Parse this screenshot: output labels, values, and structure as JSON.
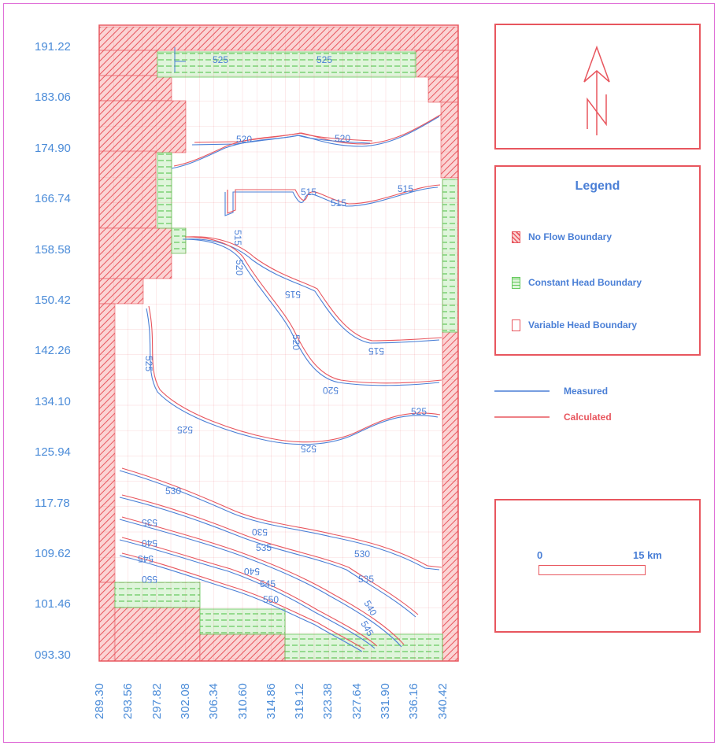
{
  "axis": {
    "y_ticks": [
      "191.22",
      "183.06",
      "174.90",
      "166.74",
      "158.58",
      "150.42",
      "142.26",
      "134.10",
      "125.94",
      "117.78",
      "109.62",
      "101.46",
      "093.30"
    ],
    "x_ticks": [
      "289.30",
      "293.56",
      "297.82",
      "302.08",
      "306.34",
      "310.60",
      "314.86",
      "319.12",
      "323.38",
      "327.64",
      "331.90",
      "336.16",
      "340.42"
    ]
  },
  "legend": {
    "title": "Legend",
    "items": [
      {
        "label": "No Flow Boundary",
        "kind": "no-flow"
      },
      {
        "label": "Constant Head Boundary",
        "kind": "constant-head"
      },
      {
        "label": "Variable Head Boundary",
        "kind": "variable-head"
      }
    ]
  },
  "line_legend": {
    "measured": "Measured",
    "calculated": "Calculated"
  },
  "scale_bar": {
    "start": "0",
    "end": "15 km"
  },
  "contour_labels": [
    "525",
    "520",
    "515",
    "530",
    "535",
    "540",
    "545",
    "550"
  ],
  "colors": {
    "measured": "#4a7fd6",
    "calculated": "#e8565e",
    "no_flow": "#e8565e",
    "constant_head": "#63c95a",
    "frame": "#e070d8",
    "axis_text": "#4a8bd8"
  }
}
